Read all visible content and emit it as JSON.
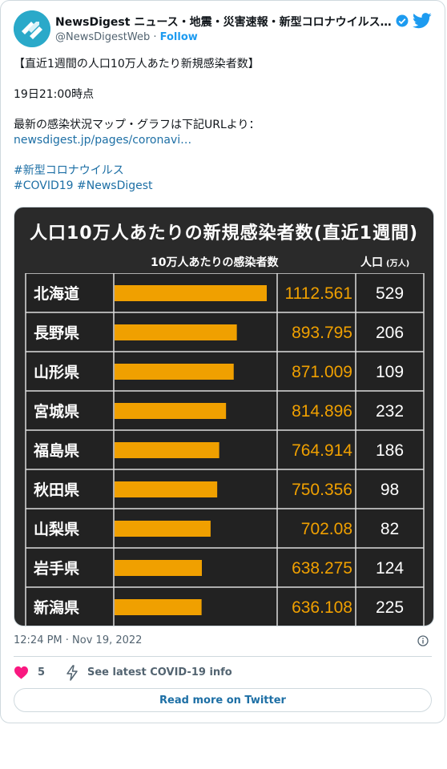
{
  "tweet": {
    "author_name": "NewsDigest ニュース・地震・災害速報・新型コロナウイルス…",
    "handle": "@NewsDigestWeb",
    "follow_label": "Follow",
    "line1": "【直近1週間の人口10万人あたり新規感染者数】",
    "line2": "19日21:00時点",
    "line3": "最新の感染状況マップ・グラフは下記URLより：",
    "link": "newsdigest.jp/pages/coronavi…",
    "hashtag1": "#新型コロナウイルス",
    "hashtag2": "#COVID19 #NewsDigest",
    "timestamp": "12:24 PM · Nov 19, 2022",
    "likes": "5",
    "covid_info": "See latest COVID-19 info",
    "read_more": "Read more on Twitter"
  },
  "colors": {
    "accent": "#1d9bf0",
    "bar": "#f0a000",
    "heart": "#f91880",
    "chart_bg": "#2a2a2a"
  },
  "chart_data": {
    "type": "table",
    "title": "人口10万人あたりの新規感染者数(直近1週間)",
    "col_header_value": "10万人あたりの感染者数",
    "col_header_pop": "人口",
    "col_header_pop_unit": "(万人)",
    "rows": [
      {
        "pref": "北海道",
        "value": "1112.561",
        "num": 1112.561,
        "pop": "529"
      },
      {
        "pref": "長野県",
        "value": "893.795",
        "num": 893.795,
        "pop": "206"
      },
      {
        "pref": "山形県",
        "value": "871.009",
        "num": 871.009,
        "pop": "109"
      },
      {
        "pref": "宮城県",
        "value": "814.896",
        "num": 814.896,
        "pop": "232"
      },
      {
        "pref": "福島県",
        "value": "764.914",
        "num": 764.914,
        "pop": "186"
      },
      {
        "pref": "秋田県",
        "value": "750.356",
        "num": 750.356,
        "pop": "98"
      },
      {
        "pref": "山梨県",
        "value": "702.08",
        "num": 702.08,
        "pop": "82"
      },
      {
        "pref": "岩手県",
        "value": "638.275",
        "num": 638.275,
        "pop": "124"
      },
      {
        "pref": "新潟県",
        "value": "636.108",
        "num": 636.108,
        "pop": "225"
      }
    ]
  }
}
